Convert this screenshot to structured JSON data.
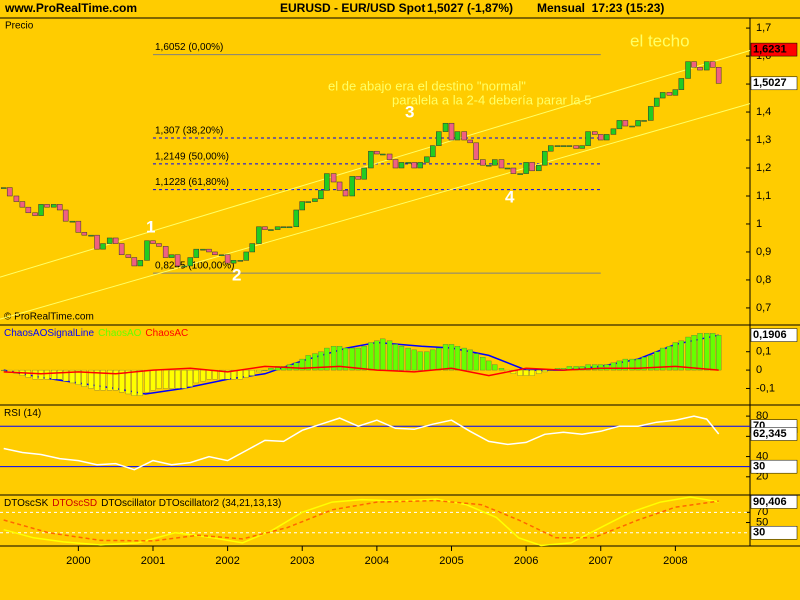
{
  "header": {
    "site": "www.ProRealTime.com",
    "symbol": "EURUSD - EUR/USD Spot",
    "quote": "1,5027 (-1,87%)",
    "period": "Mensual  17:23 (15:23)"
  },
  "copyright": "© ProRealTime.com",
  "annotations": {
    "techo": "el techo",
    "abajo": "el de abajo era el destino \"normal\"",
    "paralela": "paralela a la 2-4 debería parar la 5",
    "waves": [
      "1",
      "2",
      "3",
      "4"
    ]
  },
  "chart_data": [
    {
      "type": "candlestick",
      "axis_label": "Precio",
      "x": [
        1999,
        1999.08,
        1999.17,
        1999.25,
        1999.33,
        1999.42,
        1999.5,
        1999.58,
        1999.67,
        1999.75,
        1999.83,
        1999.92,
        2000,
        2000.08,
        2000.17,
        2000.25,
        2000.33,
        2000.42,
        2000.5,
        2000.58,
        2000.67,
        2000.75,
        2000.83,
        2000.92,
        2001,
        2001.08,
        2001.17,
        2001.25,
        2001.33,
        2001.42,
        2001.5,
        2001.58,
        2001.67,
        2001.75,
        2001.83,
        2001.92,
        2002,
        2002.08,
        2002.17,
        2002.25,
        2002.33,
        2002.42,
        2002.5,
        2002.58,
        2002.67,
        2002.75,
        2002.83,
        2002.92,
        2003,
        2003.08,
        2003.17,
        2003.25,
        2003.33,
        2003.42,
        2003.5,
        2003.58,
        2003.67,
        2003.75,
        2003.83,
        2003.92,
        2004,
        2004.08,
        2004.17,
        2004.25,
        2004.33,
        2004.42,
        2004.5,
        2004.58,
        2004.67,
        2004.75,
        2004.83,
        2004.92,
        2005,
        2005.08,
        2005.17,
        2005.25,
        2005.33,
        2005.42,
        2005.5,
        2005.58,
        2005.67,
        2005.75,
        2005.83,
        2005.92,
        2006,
        2006.08,
        2006.17,
        2006.25,
        2006.33,
        2006.42,
        2006.5,
        2006.58,
        2006.67,
        2006.75,
        2006.83,
        2006.92,
        2007,
        2007.08,
        2007.17,
        2007.25,
        2007.33,
        2007.42,
        2007.5,
        2007.58,
        2007.67,
        2007.75,
        2007.83,
        2007.92,
        2008,
        2008.08,
        2008.17,
        2008.25,
        2008.33,
        2008.42,
        2008.5,
        2008.58
      ],
      "values": [
        1.13,
        1.1,
        1.08,
        1.06,
        1.04,
        1.03,
        1.07,
        1.06,
        1.07,
        1.05,
        1.01,
        1.01,
        0.97,
        0.96,
        0.96,
        0.91,
        0.93,
        0.95,
        0.93,
        0.89,
        0.88,
        0.85,
        0.87,
        0.94,
        0.93,
        0.92,
        0.88,
        0.89,
        0.85,
        0.85,
        0.88,
        0.91,
        0.91,
        0.9,
        0.89,
        0.89,
        0.86,
        0.87,
        0.87,
        0.9,
        0.93,
        0.99,
        0.98,
        0.98,
        0.99,
        0.99,
        0.99,
        1.05,
        1.08,
        1.08,
        1.09,
        1.12,
        1.18,
        1.15,
        1.12,
        1.1,
        1.17,
        1.16,
        1.2,
        1.26,
        1.25,
        1.25,
        1.23,
        1.2,
        1.22,
        1.22,
        1.2,
        1.22,
        1.24,
        1.28,
        1.33,
        1.36,
        1.3,
        1.33,
        1.3,
        1.29,
        1.23,
        1.21,
        1.21,
        1.23,
        1.2,
        1.2,
        1.18,
        1.18,
        1.22,
        1.19,
        1.21,
        1.26,
        1.28,
        1.28,
        1.28,
        1.28,
        1.27,
        1.28,
        1.33,
        1.32,
        1.3,
        1.32,
        1.34,
        1.37,
        1.35,
        1.35,
        1.37,
        1.37,
        1.42,
        1.45,
        1.47,
        1.46,
        1.48,
        1.52,
        1.58,
        1.56,
        1.55,
        1.58,
        1.56,
        1.5027
      ],
      "up_color": "#22cc22",
      "down_color": "#f06080",
      "xlim": [
        1998.95,
        2009.0
      ],
      "xticks": [
        2000,
        2001,
        2002,
        2003,
        2004,
        2005,
        2006,
        2007,
        2008
      ],
      "ylim": [
        0.639,
        1.736
      ],
      "yticks": [
        {
          "value": 0.7,
          "label": "0,7"
        },
        {
          "value": 0.8,
          "label": "0,8"
        },
        {
          "value": 0.9,
          "label": "0,9"
        },
        1,
        {
          "value": 1.1,
          "label": "1,1"
        },
        {
          "value": 1.2,
          "label": "1,2"
        },
        {
          "value": 1.3,
          "label": "1,3"
        },
        {
          "value": 1.4,
          "label": "1,4"
        },
        {
          "value": 1.5,
          "label": "1,5"
        },
        {
          "value": 1.6,
          "label": "1,6"
        },
        {
          "value": 1.7,
          "label": "1,7"
        }
      ],
      "trendlines": [
        {
          "x": [
            1998.95,
            2009.0
          ],
          "y": [
            0.81,
            1.62
          ]
        },
        {
          "x": [
            1998.95,
            2009.0
          ],
          "y": [
            0.66,
            1.43
          ]
        }
      ],
      "trend_color": "#ffff66",
      "level_x": [
        2001.0,
        2007.0
      ],
      "levels": [
        {
          "value": 1.6052,
          "label": "1,6052 (0,00%)",
          "color": "#808080",
          "dash": false
        },
        {
          "value": 1.307,
          "label": "1,307 (38,20%)",
          "color": "#0000ff",
          "dash": true
        },
        {
          "value": 1.2149,
          "label": "1,2149 (50,00%)",
          "color": "#0000ff",
          "dash": true
        },
        {
          "value": 1.1228,
          "label": "1,1228 (61,80%)",
          "color": "#0000ff",
          "dash": true
        },
        {
          "value": 0.8245,
          "label": "0,8245 (100,00%)",
          "color": "#808080",
          "dash": false
        }
      ],
      "value_tags": [
        {
          "value": 1.6231,
          "label": "1,6231",
          "color": "#ff0000"
        },
        {
          "value": 1.5027,
          "label": "1,5027",
          "color": "#ffffff"
        }
      ]
    },
    {
      "type": "bar",
      "ylim": [
        -0.19,
        0.24
      ],
      "yticks": [
        {
          "value": -0.1,
          "label": "-0,1"
        },
        0,
        {
          "value": 0.1,
          "label": "0,1"
        }
      ],
      "series": [
        {
          "name": "ChaosAOSignalLine",
          "color": "#0000ff",
          "type": "line",
          "x": [
            1999,
            1999.5,
            2000,
            2000.5,
            2000.9,
            2001.4,
            2002,
            2002.5,
            2003,
            2003.6,
            2004,
            2004.6,
            2005,
            2005.5,
            2006,
            2006.5,
            2007,
            2007.5,
            2008,
            2008.58
          ],
          "values": [
            0,
            -0.04,
            -0.07,
            -0.1,
            -0.13,
            -0.1,
            -0.05,
            -0.02,
            0.05,
            0.12,
            0.15,
            0.13,
            0.12,
            0.08,
            0,
            0,
            0.02,
            0.06,
            0.14,
            0.19
          ]
        },
        {
          "name": "ChaosAO",
          "color": "#66ff00",
          "neg_color": "#ffff00",
          "type": "bar",
          "values": [
            0,
            -0.01,
            -0.02,
            -0.03,
            -0.04,
            -0.05,
            -0.05,
            -0.05,
            -0.05,
            -0.05,
            -0.06,
            -0.07,
            -0.08,
            -0.09,
            -0.1,
            -0.11,
            -0.11,
            -0.11,
            -0.11,
            -0.12,
            -0.13,
            -0.14,
            -0.14,
            -0.12,
            -0.11,
            -0.1,
            -0.1,
            -0.1,
            -0.1,
            -0.1,
            -0.09,
            -0.07,
            -0.06,
            -0.05,
            -0.05,
            -0.05,
            -0.05,
            -0.05,
            -0.05,
            -0.04,
            -0.03,
            -0.01,
            0,
            0.01,
            0.02,
            0.02,
            0.03,
            0.04,
            0.06,
            0.08,
            0.09,
            0.1,
            0.12,
            0.13,
            0.13,
            0.12,
            0.12,
            0.12,
            0.13,
            0.15,
            0.16,
            0.17,
            0.16,
            0.14,
            0.13,
            0.12,
            0.11,
            0.1,
            0.1,
            0.11,
            0.12,
            0.14,
            0.14,
            0.13,
            0.12,
            0.11,
            0.09,
            0.07,
            0.05,
            0.03,
            0.01,
            -0.01,
            -0.02,
            -0.03,
            -0.03,
            -0.03,
            -0.02,
            -0.01,
            0,
            0.01,
            0.01,
            0.02,
            0.02,
            0.02,
            0.03,
            0.03,
            0.03,
            0.03,
            0.04,
            0.05,
            0.06,
            0.06,
            0.06,
            0.07,
            0.08,
            0.1,
            0.12,
            0.13,
            0.15,
            0.16,
            0.18,
            0.19,
            0.2,
            0.2,
            0.2,
            0.19
          ]
        },
        {
          "name": "ChaosAC",
          "color": "#ff0000",
          "type": "line",
          "x": [
            1999,
            1999.5,
            2000,
            2000.5,
            2001,
            2001.5,
            2002,
            2002.5,
            2003,
            2003.5,
            2004,
            2004.5,
            2005,
            2005.5,
            2006,
            2006.5,
            2007,
            2007.5,
            2008,
            2008.58
          ],
          "values": [
            -0.01,
            -0.02,
            -0.01,
            -0.02,
            0,
            0.01,
            -0.01,
            0.02,
            0.01,
            0.02,
            0,
            -0.01,
            0.01,
            -0.03,
            0.01,
            0,
            0.01,
            0.01,
            0.02,
            0
          ]
        }
      ],
      "value_tags": [
        {
          "value": 0.1906,
          "label": "0,1906",
          "color": "#ffffff"
        }
      ]
    },
    {
      "type": "line",
      "ylim": [
        2,
        90
      ],
      "yticks": [
        20,
        40,
        60,
        80
      ],
      "series": [
        {
          "name": "RSI (14)",
          "color": "#ffffff",
          "x": [
            1999,
            1999.25,
            1999.5,
            1999.75,
            2000,
            2000.25,
            2000.5,
            2000.75,
            2001,
            2001.25,
            2001.5,
            2001.75,
            2002,
            2002.25,
            2002.5,
            2002.75,
            2003,
            2003.25,
            2003.5,
            2003.75,
            2004,
            2004.25,
            2004.5,
            2004.75,
            2005,
            2005.25,
            2005.5,
            2005.75,
            2006,
            2006.25,
            2006.5,
            2006.75,
            2007,
            2007.25,
            2007.5,
            2007.75,
            2008,
            2008.25,
            2008.42,
            2008.58
          ],
          "values": [
            48,
            44,
            42,
            38,
            36,
            32,
            33,
            27,
            36,
            32,
            34,
            40,
            36,
            46,
            56,
            55,
            66,
            72,
            78,
            70,
            76,
            68,
            67,
            72,
            76,
            65,
            55,
            52,
            54,
            62,
            64,
            62,
            65,
            70,
            70,
            74,
            76,
            80,
            77,
            62.345
          ]
        }
      ],
      "levels": [
        {
          "value": 70,
          "color": "#0000ff",
          "dash": false
        },
        {
          "value": 30,
          "color": "#0000ff",
          "dash": false
        }
      ],
      "value_tags": [
        {
          "value": 70,
          "color": "#ffffff"
        },
        {
          "value": 62.345,
          "label": "62,345",
          "color": "#ffffff"
        },
        {
          "value": 30,
          "color": "#ffffff"
        }
      ]
    },
    {
      "type": "line",
      "title": "DTOscillator DTOscillator2 (34,21,13,13)",
      "ylim": [
        4,
        102
      ],
      "yticks": [
        50,
        70
      ],
      "series": [
        {
          "name": "DTOscSK",
          "color": "#ffff00",
          "legend_color": "#000000",
          "x": [
            1999,
            1999.4,
            1999.8,
            2000.3,
            2000.8,
            2001.3,
            2001.8,
            2002.2,
            2002.6,
            2003,
            2003.4,
            2003.8,
            2004.3,
            2004.8,
            2005.2,
            2005.6,
            2005.9,
            2006.2,
            2006.6,
            2007,
            2007.4,
            2007.8,
            2008.2,
            2008.58
          ],
          "values": [
            36,
            20,
            12,
            6,
            10,
            30,
            20,
            10,
            35,
            70,
            90,
            95,
            92,
            96,
            85,
            60,
            20,
            5,
            10,
            40,
            70,
            90,
            100,
            90.406
          ]
        },
        {
          "name": "DTOscSD",
          "color": "#ff6600",
          "legend_color": "#cc0000",
          "dash": true,
          "x": [
            1999,
            1999.6,
            2000.3,
            2001,
            2001.6,
            2002.2,
            2002.8,
            2003.4,
            2004,
            2004.8,
            2005.4,
            2005.9,
            2006.4,
            2006.9,
            2007.5,
            2008,
            2008.58
          ],
          "values": [
            55,
            30,
            15,
            14,
            25,
            18,
            40,
            75,
            90,
            93,
            85,
            55,
            20,
            20,
            55,
            80,
            92
          ]
        }
      ],
      "levels": [
        {
          "value": 70,
          "color": "#ffffff",
          "dash": true
        },
        {
          "value": 30,
          "color": "#ffffff",
          "dash": true
        }
      ],
      "value_tags": [
        {
          "value": 90.406,
          "label": "90,406",
          "color": "#ffffff"
        },
        {
          "value": 30,
          "color": "#ffffff"
        }
      ]
    }
  ]
}
